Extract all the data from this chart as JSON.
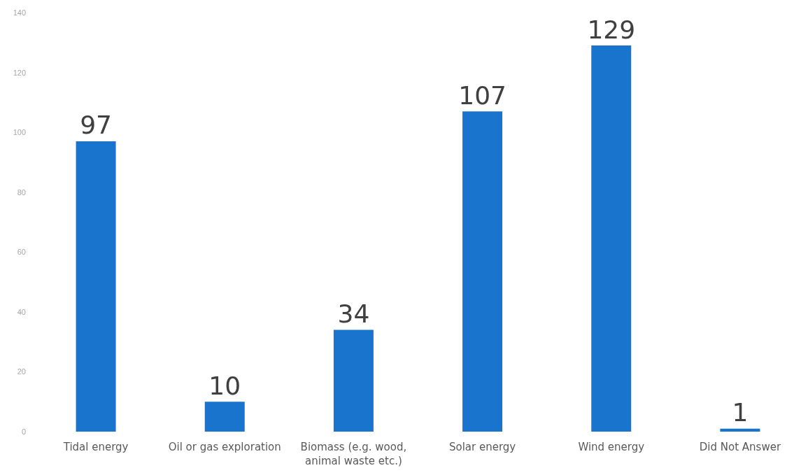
{
  "chart_data": {
    "type": "bar",
    "categories": [
      "Tidal energy",
      "Oil or gas exploration",
      "Biomass (e.g. wood,\nanimal waste etc.)",
      "Solar energy",
      "Wind energy",
      "Did Not Answer"
    ],
    "values": [
      97,
      10,
      34,
      107,
      129,
      1
    ],
    "color": "#1874cd",
    "ylim": [
      0,
      140
    ],
    "yticks": [
      0,
      20,
      40,
      60,
      80,
      100,
      120,
      140
    ],
    "data_labels": true,
    "grid": false
  }
}
